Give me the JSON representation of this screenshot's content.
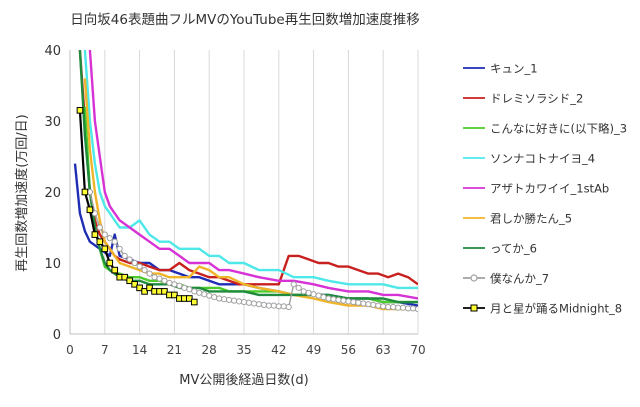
{
  "chart_data": {
    "type": "line",
    "title": "日向坂46表題曲フルMVのYouTube再生回数増加速度推移",
    "xlabel": "MV公開後経過日数(d)",
    "ylabel": "再生回数増加速度(万回/日)",
    "xlim": [
      0,
      70
    ],
    "ylim": [
      0,
      40
    ],
    "x_ticks": [
      "0",
      "7",
      "14",
      "21",
      "28",
      "35",
      "42",
      "49",
      "56",
      "63",
      "70"
    ],
    "y_ticks": [
      "0",
      "10",
      "20",
      "30",
      "40"
    ],
    "grid": "vertical",
    "legend_position": "right",
    "series": [
      {
        "name": "キュン_1",
        "color": "#1f2db4",
        "marker": "none",
        "x": [
          1,
          2,
          3,
          4,
          5,
          6,
          7,
          8,
          9,
          10,
          12,
          14,
          16,
          18,
          20,
          22,
          24,
          26,
          28,
          30,
          32,
          35,
          38,
          42,
          45,
          49,
          52,
          56,
          60,
          63,
          66,
          70
        ],
        "y": [
          24,
          17,
          14.5,
          13,
          12.5,
          12,
          11.5,
          11,
          14,
          11,
          10.5,
          10,
          10,
          9,
          9,
          8.5,
          8,
          8,
          7.5,
          7,
          7,
          7,
          6.5,
          6,
          5.5,
          5.5,
          5.5,
          5,
          5,
          4.5,
          4.5,
          4
        ]
      },
      {
        "name": "ドレミソラシド_2",
        "color": "#c8201e",
        "marker": "none",
        "x": [
          2,
          3,
          4,
          5,
          6,
          7,
          8,
          9,
          10,
          12,
          14,
          16,
          18,
          20,
          22,
          24,
          26,
          28,
          30,
          32,
          34,
          36,
          38,
          40,
          42,
          44,
          46,
          48,
          50,
          52,
          54,
          56,
          58,
          60,
          62,
          64,
          66,
          68,
          70
        ],
        "y": [
          40,
          30,
          20,
          16,
          14,
          13,
          12,
          11,
          10.5,
          10,
          10,
          9.5,
          9,
          9,
          10,
          9,
          8.5,
          8,
          8,
          7.5,
          7,
          7,
          7,
          7,
          7,
          11,
          11,
          10.5,
          10,
          10,
          9.5,
          9.5,
          9,
          8.5,
          8.5,
          8,
          8.5,
          8,
          7
        ]
      },
      {
        "name": "こんなに好きに(以下略)_3",
        "color": "#4ccc28",
        "marker": "none",
        "x": [
          3,
          4,
          5,
          6,
          7,
          8,
          9,
          10,
          12,
          14,
          16,
          18,
          20,
          22,
          24,
          26,
          28,
          30,
          32,
          35,
          38,
          42,
          45,
          49,
          52,
          56,
          60,
          63,
          66,
          70
        ],
        "y": [
          32,
          20,
          15,
          12,
          9.5,
          9,
          8.5,
          8.5,
          8,
          8,
          7.5,
          7.5,
          7,
          7,
          6.5,
          6.5,
          6.5,
          6.5,
          6,
          6,
          6,
          6,
          5.5,
          5.5,
          5,
          5,
          5,
          4.5,
          4.5,
          4.5
        ]
      },
      {
        "name": "ソンナコトナイヨ_4",
        "color": "#4ee8e8",
        "marker": "none",
        "x": [
          3,
          4,
          5,
          6,
          7,
          8,
          9,
          10,
          12,
          14,
          16,
          18,
          20,
          22,
          24,
          26,
          28,
          30,
          32,
          35,
          38,
          42,
          45,
          49,
          52,
          56,
          60,
          63,
          66,
          70
        ],
        "y": [
          40,
          30,
          24,
          20,
          18,
          17,
          16,
          15,
          15,
          16,
          14,
          13,
          13,
          12,
          12,
          12,
          11,
          11,
          10,
          10,
          9,
          9,
          8,
          8,
          7.5,
          7,
          7,
          7,
          6.5,
          6.5
        ]
      },
      {
        "name": "アザトカワイイ_1stAb",
        "color": "#d632d6",
        "marker": "none",
        "x": [
          4,
          5,
          6,
          7,
          8,
          9,
          10,
          12,
          14,
          16,
          18,
          20,
          22,
          24,
          26,
          28,
          30,
          32,
          35,
          38,
          42,
          45,
          49,
          52,
          56,
          60,
          63,
          66,
          70
        ],
        "y": [
          40,
          30,
          25,
          20,
          18,
          17,
          16,
          15,
          14,
          13,
          12,
          12,
          11,
          10,
          10,
          10,
          9,
          9,
          8.5,
          8,
          7.5,
          7.5,
          7,
          6.5,
          6,
          6,
          5.5,
          5.5,
          5
        ]
      },
      {
        "name": "君しか勝たん_5",
        "color": "#f0b428",
        "marker": "none",
        "x": [
          3,
          4,
          5,
          6,
          7,
          8,
          9,
          10,
          12,
          14,
          16,
          18,
          20,
          22,
          24,
          26,
          28,
          30,
          32,
          35,
          38,
          42,
          45,
          49,
          52,
          56,
          60,
          63,
          66,
          70
        ],
        "y": [
          36,
          26,
          20,
          16,
          13,
          12,
          11,
          10,
          9.5,
          9,
          8.5,
          8.5,
          8,
          8,
          8,
          9.5,
          9,
          8,
          8,
          7,
          6.5,
          6,
          5.5,
          5,
          4.5,
          4,
          4,
          3.5,
          3.5,
          3.5
        ]
      },
      {
        "name": "ってか_6",
        "color": "#1e8c3c",
        "marker": "none",
        "x": [
          2,
          3,
          4,
          5,
          6,
          7,
          8,
          9,
          10,
          12,
          14,
          16,
          18,
          20,
          22,
          24,
          26,
          28,
          30,
          32,
          35,
          38,
          42,
          45,
          49,
          52,
          56,
          60,
          63,
          66,
          70
        ],
        "y": [
          40,
          28,
          20,
          15,
          12,
          10,
          9,
          8.5,
          8,
          7.5,
          7.5,
          7,
          7,
          7,
          6.5,
          6.5,
          6.5,
          6,
          6,
          6,
          6,
          5.5,
          5.5,
          5.5,
          5.5,
          5.5,
          5,
          5,
          5,
          4.5,
          4.5
        ]
      },
      {
        "name": "僕なんか_7",
        "color": "#a0a0a0",
        "marker": "circle",
        "x": [
          4,
          5,
          6,
          7,
          8,
          9,
          10,
          11,
          12,
          13,
          14,
          15,
          16,
          17,
          18,
          19,
          20,
          21,
          22,
          23,
          24,
          25,
          26,
          27,
          28,
          29,
          30,
          31,
          32,
          33,
          34,
          35,
          36,
          37,
          38,
          39,
          40,
          41,
          42,
          43,
          44,
          45,
          46,
          47,
          48,
          49,
          50,
          51,
          52,
          53,
          54,
          55,
          56,
          57,
          58,
          59,
          60,
          61,
          62,
          63,
          64,
          65,
          66,
          67,
          68,
          69,
          70
        ],
        "y": [
          20,
          17,
          15,
          14,
          13.5,
          13,
          12,
          11,
          10.5,
          10,
          9.5,
          9,
          8.5,
          8,
          7.8,
          7.5,
          7.2,
          7,
          6.8,
          6.5,
          6.3,
          6,
          5.8,
          5.6,
          5.4,
          5.2,
          5,
          4.9,
          4.8,
          4.7,
          4.6,
          4.5,
          4.4,
          4.3,
          4.2,
          4.1,
          4,
          4,
          3.9,
          3.9,
          3.8,
          7,
          6.5,
          6,
          5.8,
          5.6,
          5.4,
          5.2,
          5,
          4.9,
          4.8,
          4.7,
          4.6,
          4.5,
          4.4,
          4.3,
          4.2,
          4.1,
          4,
          3.9,
          3.8,
          3.8,
          3.7,
          3.7,
          3.6,
          3.6,
          3.5
        ]
      },
      {
        "name": "月と星が踊るMidnight_8",
        "color": "#000000",
        "marker": "square",
        "x": [
          2,
          3,
          4,
          5,
          6,
          7,
          8,
          9,
          10,
          11,
          12,
          13,
          14,
          15,
          16,
          17,
          18,
          19,
          20,
          21,
          22,
          23,
          24,
          25
        ],
        "y": [
          31.5,
          20,
          17.5,
          14,
          13,
          12,
          10,
          9,
          8,
          8,
          7.5,
          7,
          6.5,
          6,
          6.5,
          6,
          6,
          6,
          5.5,
          5.5,
          5,
          5,
          5,
          4.5
        ]
      }
    ]
  }
}
